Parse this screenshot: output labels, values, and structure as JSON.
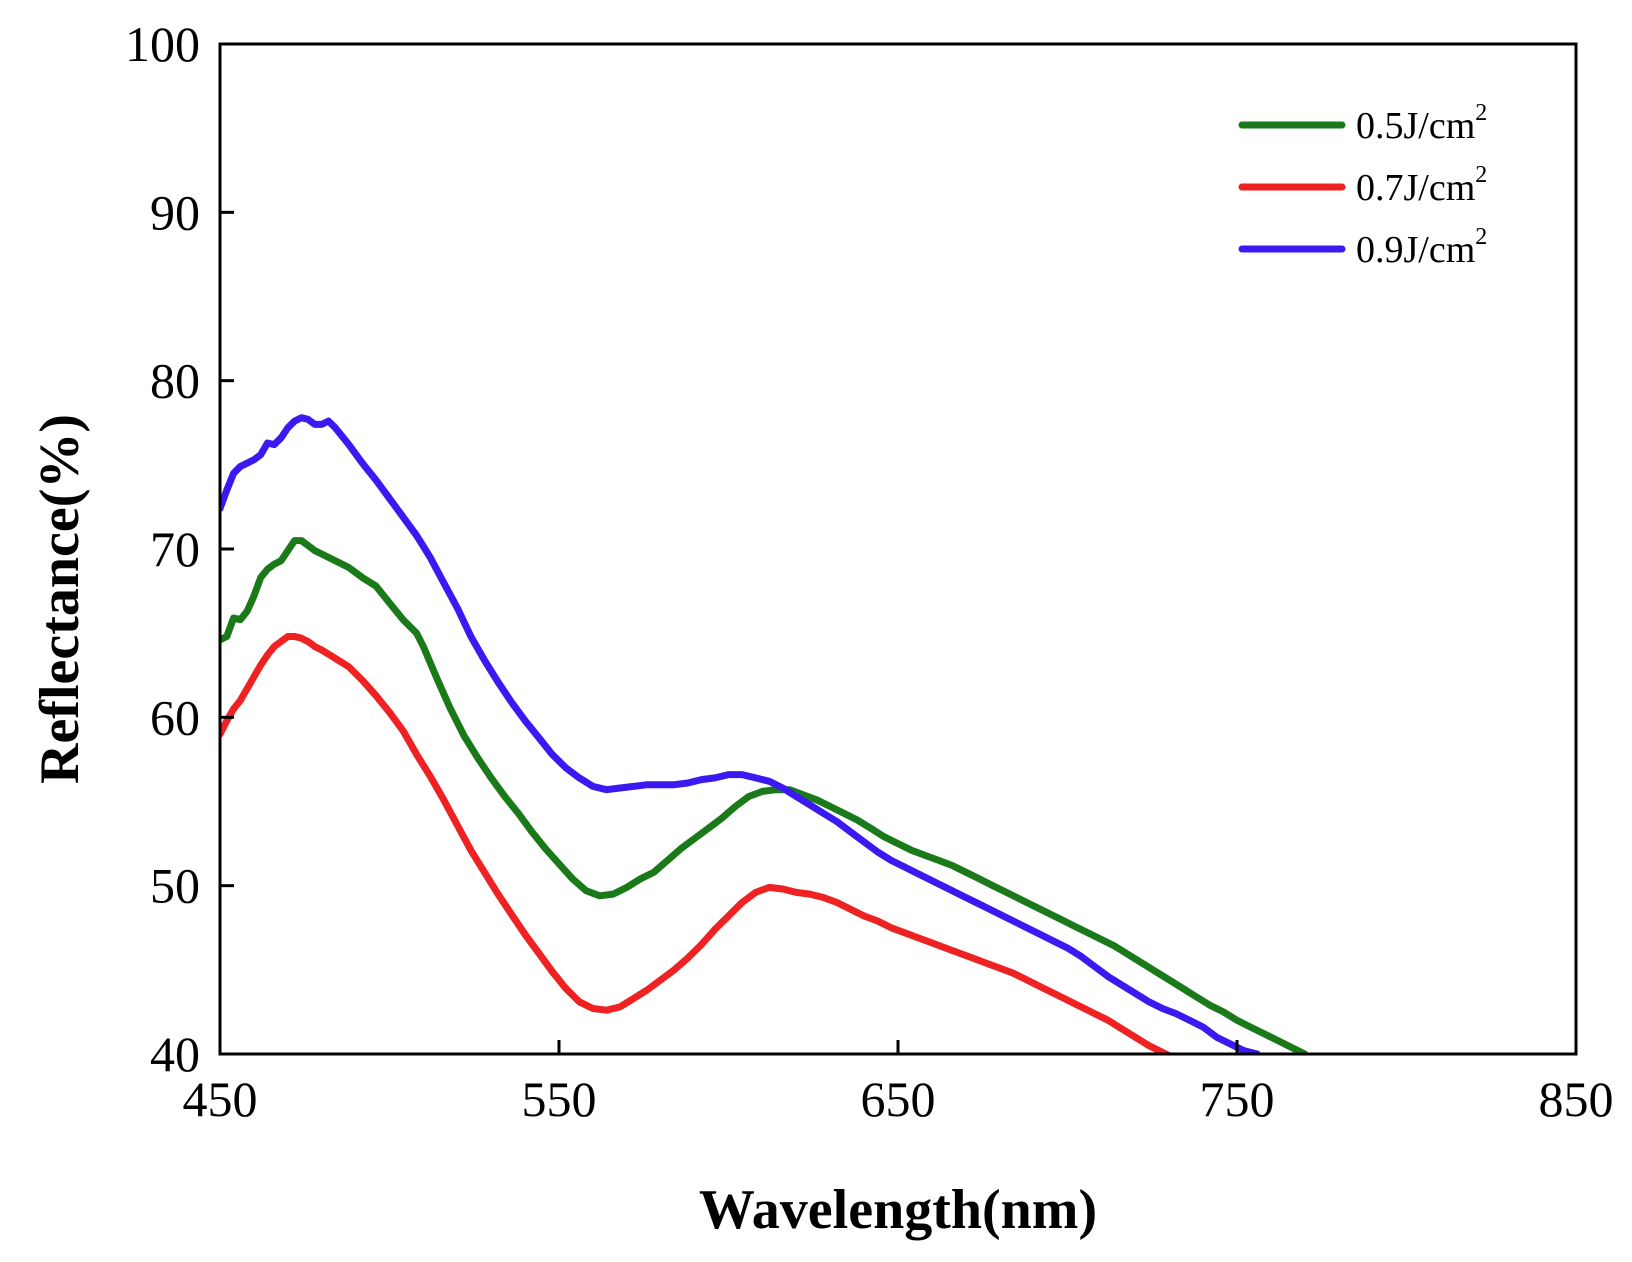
{
  "chart_data": {
    "type": "line",
    "title": "",
    "xlabel": "Wavelength(nm)",
    "ylabel": "Reflectance(%)",
    "xlim": [
      450,
      850
    ],
    "ylim": [
      40,
      100
    ],
    "xticks": [
      450,
      550,
      650,
      750,
      850
    ],
    "yticks": [
      40,
      50,
      60,
      70,
      80,
      90,
      100
    ],
    "grid": false,
    "legend_position": "top-right",
    "series": [
      {
        "name": "0.5J/cm",
        "name_superscript": "2",
        "color": "#1a7a1a",
        "points": [
          [
            450,
            64.6
          ],
          [
            452,
            64.8
          ],
          [
            454,
            65.9
          ],
          [
            456,
            65.8
          ],
          [
            458,
            66.3
          ],
          [
            460,
            67.2
          ],
          [
            462,
            68.3
          ],
          [
            464,
            68.8
          ],
          [
            466,
            69.1
          ],
          [
            468,
            69.3
          ],
          [
            470,
            69.9
          ],
          [
            472,
            70.5
          ],
          [
            474,
            70.5
          ],
          [
            476,
            70.2
          ],
          [
            478,
            69.9
          ],
          [
            480,
            69.7
          ],
          [
            484,
            69.3
          ],
          [
            488,
            68.9
          ],
          [
            492,
            68.3
          ],
          [
            496,
            67.8
          ],
          [
            500,
            66.8
          ],
          [
            504,
            65.8
          ],
          [
            508,
            65.0
          ],
          [
            510,
            64.2
          ],
          [
            514,
            62.3
          ],
          [
            518,
            60.5
          ],
          [
            522,
            58.9
          ],
          [
            526,
            57.6
          ],
          [
            530,
            56.4
          ],
          [
            534,
            55.3
          ],
          [
            538,
            54.3
          ],
          [
            542,
            53.2
          ],
          [
            546,
            52.2
          ],
          [
            550,
            51.3
          ],
          [
            554,
            50.4
          ],
          [
            558,
            49.7
          ],
          [
            562,
            49.4
          ],
          [
            566,
            49.5
          ],
          [
            570,
            49.9
          ],
          [
            574,
            50.4
          ],
          [
            578,
            50.8
          ],
          [
            582,
            51.5
          ],
          [
            586,
            52.2
          ],
          [
            590,
            52.8
          ],
          [
            594,
            53.4
          ],
          [
            598,
            54.0
          ],
          [
            602,
            54.7
          ],
          [
            606,
            55.3
          ],
          [
            610,
            55.6
          ],
          [
            614,
            55.7
          ],
          [
            618,
            55.7
          ],
          [
            622,
            55.4
          ],
          [
            626,
            55.1
          ],
          [
            630,
            54.7
          ],
          [
            634,
            54.3
          ],
          [
            638,
            53.9
          ],
          [
            642,
            53.4
          ],
          [
            646,
            52.9
          ],
          [
            650,
            52.5
          ],
          [
            654,
            52.1
          ],
          [
            658,
            51.8
          ],
          [
            662,
            51.5
          ],
          [
            666,
            51.2
          ],
          [
            670,
            50.8
          ],
          [
            674,
            50.4
          ],
          [
            678,
            50.0
          ],
          [
            682,
            49.6
          ],
          [
            686,
            49.2
          ],
          [
            690,
            48.8
          ],
          [
            694,
            48.4
          ],
          [
            698,
            48.0
          ],
          [
            702,
            47.6
          ],
          [
            706,
            47.2
          ],
          [
            710,
            46.8
          ],
          [
            714,
            46.4
          ],
          [
            718,
            45.9
          ],
          [
            722,
            45.4
          ],
          [
            726,
            44.9
          ],
          [
            730,
            44.4
          ],
          [
            734,
            43.9
          ],
          [
            738,
            43.4
          ],
          [
            742,
            42.9
          ],
          [
            746,
            42.5
          ],
          [
            750,
            42.0
          ],
          [
            754,
            41.6
          ],
          [
            758,
            41.2
          ],
          [
            762,
            40.8
          ],
          [
            766,
            40.4
          ],
          [
            770,
            40.0
          ]
        ]
      },
      {
        "name": "0.7J/cm",
        "name_superscript": "2",
        "color": "#ee2222",
        "points": [
          [
            450,
            59.0
          ],
          [
            452,
            59.8
          ],
          [
            454,
            60.5
          ],
          [
            456,
            61.0
          ],
          [
            458,
            61.7
          ],
          [
            460,
            62.4
          ],
          [
            462,
            63.1
          ],
          [
            464,
            63.7
          ],
          [
            466,
            64.2
          ],
          [
            468,
            64.5
          ],
          [
            470,
            64.8
          ],
          [
            472,
            64.8
          ],
          [
            474,
            64.7
          ],
          [
            476,
            64.5
          ],
          [
            478,
            64.2
          ],
          [
            480,
            64.0
          ],
          [
            484,
            63.5
          ],
          [
            488,
            63.0
          ],
          [
            492,
            62.2
          ],
          [
            496,
            61.3
          ],
          [
            500,
            60.3
          ],
          [
            504,
            59.2
          ],
          [
            508,
            57.8
          ],
          [
            512,
            56.5
          ],
          [
            516,
            55.1
          ],
          [
            520,
            53.6
          ],
          [
            524,
            52.1
          ],
          [
            528,
            50.8
          ],
          [
            532,
            49.5
          ],
          [
            536,
            48.3
          ],
          [
            540,
            47.1
          ],
          [
            544,
            46.0
          ],
          [
            548,
            44.9
          ],
          [
            552,
            43.9
          ],
          [
            556,
            43.1
          ],
          [
            560,
            42.7
          ],
          [
            564,
            42.6
          ],
          [
            568,
            42.8
          ],
          [
            572,
            43.3
          ],
          [
            576,
            43.8
          ],
          [
            580,
            44.4
          ],
          [
            584,
            45.0
          ],
          [
            588,
            45.7
          ],
          [
            592,
            46.5
          ],
          [
            596,
            47.4
          ],
          [
            600,
            48.2
          ],
          [
            604,
            49.0
          ],
          [
            608,
            49.6
          ],
          [
            612,
            49.9
          ],
          [
            616,
            49.8
          ],
          [
            620,
            49.6
          ],
          [
            624,
            49.5
          ],
          [
            628,
            49.3
          ],
          [
            632,
            49.0
          ],
          [
            636,
            48.6
          ],
          [
            640,
            48.2
          ],
          [
            644,
            47.9
          ],
          [
            648,
            47.5
          ],
          [
            652,
            47.2
          ],
          [
            656,
            46.9
          ],
          [
            660,
            46.6
          ],
          [
            664,
            46.3
          ],
          [
            668,
            46.0
          ],
          [
            672,
            45.7
          ],
          [
            676,
            45.4
          ],
          [
            680,
            45.1
          ],
          [
            684,
            44.8
          ],
          [
            688,
            44.4
          ],
          [
            692,
            44.0
          ],
          [
            696,
            43.6
          ],
          [
            700,
            43.2
          ],
          [
            704,
            42.8
          ],
          [
            708,
            42.4
          ],
          [
            712,
            42.0
          ],
          [
            716,
            41.5
          ],
          [
            720,
            41.0
          ],
          [
            724,
            40.5
          ],
          [
            728,
            40.1
          ],
          [
            730,
            39.9
          ]
        ]
      },
      {
        "name": "0.9J/cm",
        "name_superscript": "2",
        "color": "#3a1af0",
        "points": [
          [
            450,
            72.4
          ],
          [
            452,
            73.5
          ],
          [
            454,
            74.5
          ],
          [
            456,
            74.9
          ],
          [
            458,
            75.1
          ],
          [
            460,
            75.3
          ],
          [
            462,
            75.6
          ],
          [
            464,
            76.3
          ],
          [
            466,
            76.2
          ],
          [
            468,
            76.6
          ],
          [
            470,
            77.2
          ],
          [
            472,
            77.6
          ],
          [
            474,
            77.8
          ],
          [
            476,
            77.7
          ],
          [
            478,
            77.4
          ],
          [
            480,
            77.4
          ],
          [
            482,
            77.6
          ],
          [
            484,
            77.2
          ],
          [
            488,
            76.2
          ],
          [
            492,
            75.1
          ],
          [
            496,
            74.1
          ],
          [
            500,
            73.0
          ],
          [
            504,
            71.9
          ],
          [
            508,
            70.8
          ],
          [
            512,
            69.5
          ],
          [
            516,
            68.0
          ],
          [
            520,
            66.5
          ],
          [
            524,
            64.8
          ],
          [
            528,
            63.4
          ],
          [
            532,
            62.1
          ],
          [
            536,
            60.9
          ],
          [
            540,
            59.8
          ],
          [
            544,
            58.8
          ],
          [
            548,
            57.8
          ],
          [
            552,
            57.0
          ],
          [
            556,
            56.4
          ],
          [
            560,
            55.9
          ],
          [
            564,
            55.7
          ],
          [
            568,
            55.8
          ],
          [
            572,
            55.9
          ],
          [
            576,
            56.0
          ],
          [
            580,
            56.0
          ],
          [
            584,
            56.0
          ],
          [
            588,
            56.1
          ],
          [
            592,
            56.3
          ],
          [
            596,
            56.4
          ],
          [
            600,
            56.6
          ],
          [
            604,
            56.6
          ],
          [
            608,
            56.4
          ],
          [
            612,
            56.2
          ],
          [
            616,
            55.8
          ],
          [
            620,
            55.3
          ],
          [
            624,
            54.8
          ],
          [
            628,
            54.3
          ],
          [
            632,
            53.8
          ],
          [
            636,
            53.2
          ],
          [
            640,
            52.6
          ],
          [
            644,
            52.0
          ],
          [
            648,
            51.5
          ],
          [
            652,
            51.1
          ],
          [
            656,
            50.7
          ],
          [
            660,
            50.3
          ],
          [
            664,
            49.9
          ],
          [
            668,
            49.5
          ],
          [
            672,
            49.1
          ],
          [
            676,
            48.7
          ],
          [
            680,
            48.3
          ],
          [
            684,
            47.9
          ],
          [
            688,
            47.5
          ],
          [
            692,
            47.1
          ],
          [
            696,
            46.7
          ],
          [
            700,
            46.3
          ],
          [
            704,
            45.8
          ],
          [
            708,
            45.2
          ],
          [
            712,
            44.6
          ],
          [
            716,
            44.1
          ],
          [
            720,
            43.6
          ],
          [
            724,
            43.1
          ],
          [
            728,
            42.7
          ],
          [
            732,
            42.4
          ],
          [
            736,
            42.0
          ],
          [
            740,
            41.6
          ],
          [
            744,
            41.0
          ],
          [
            748,
            40.6
          ],
          [
            752,
            40.2
          ],
          [
            756,
            40.0
          ]
        ]
      }
    ]
  }
}
